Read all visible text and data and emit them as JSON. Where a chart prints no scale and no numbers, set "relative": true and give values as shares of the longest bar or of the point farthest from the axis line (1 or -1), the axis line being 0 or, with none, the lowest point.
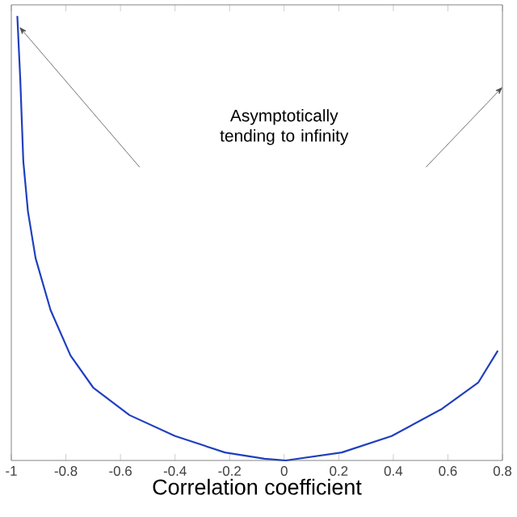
{
  "chart_data": {
    "type": "line",
    "relative": true,
    "xlabel": "Correlation coefficient",
    "x": [
      -0.978,
      -0.967,
      -0.956,
      -0.939,
      -0.911,
      -0.856,
      -0.783,
      -0.7,
      -0.567,
      -0.4,
      -0.217,
      -0.072,
      0.006,
      0.211,
      0.394,
      0.578,
      0.711,
      0.783
    ],
    "series": [
      {
        "color": "#1f3fbf",
        "values": [
          1.0,
          0.855,
          0.673,
          0.56,
          0.455,
          0.338,
          0.236,
          0.164,
          0.102,
          0.055,
          0.018,
          0.004,
          0.0,
          0.018,
          0.055,
          0.116,
          0.175,
          0.247
        ]
      }
    ],
    "xlim": [
      -1,
      0.8
    ],
    "xticks": [
      {
        "value": -1,
        "label": "-1"
      },
      -0.8,
      -0.6,
      -0.4,
      -0.2,
      0,
      0.2,
      0.4,
      0.6,
      0.8
    ],
    "annotations": [
      "Asymptotically tending to infinity"
    ],
    "marker": "none",
    "line_style": "solid",
    "grid": false
  }
}
